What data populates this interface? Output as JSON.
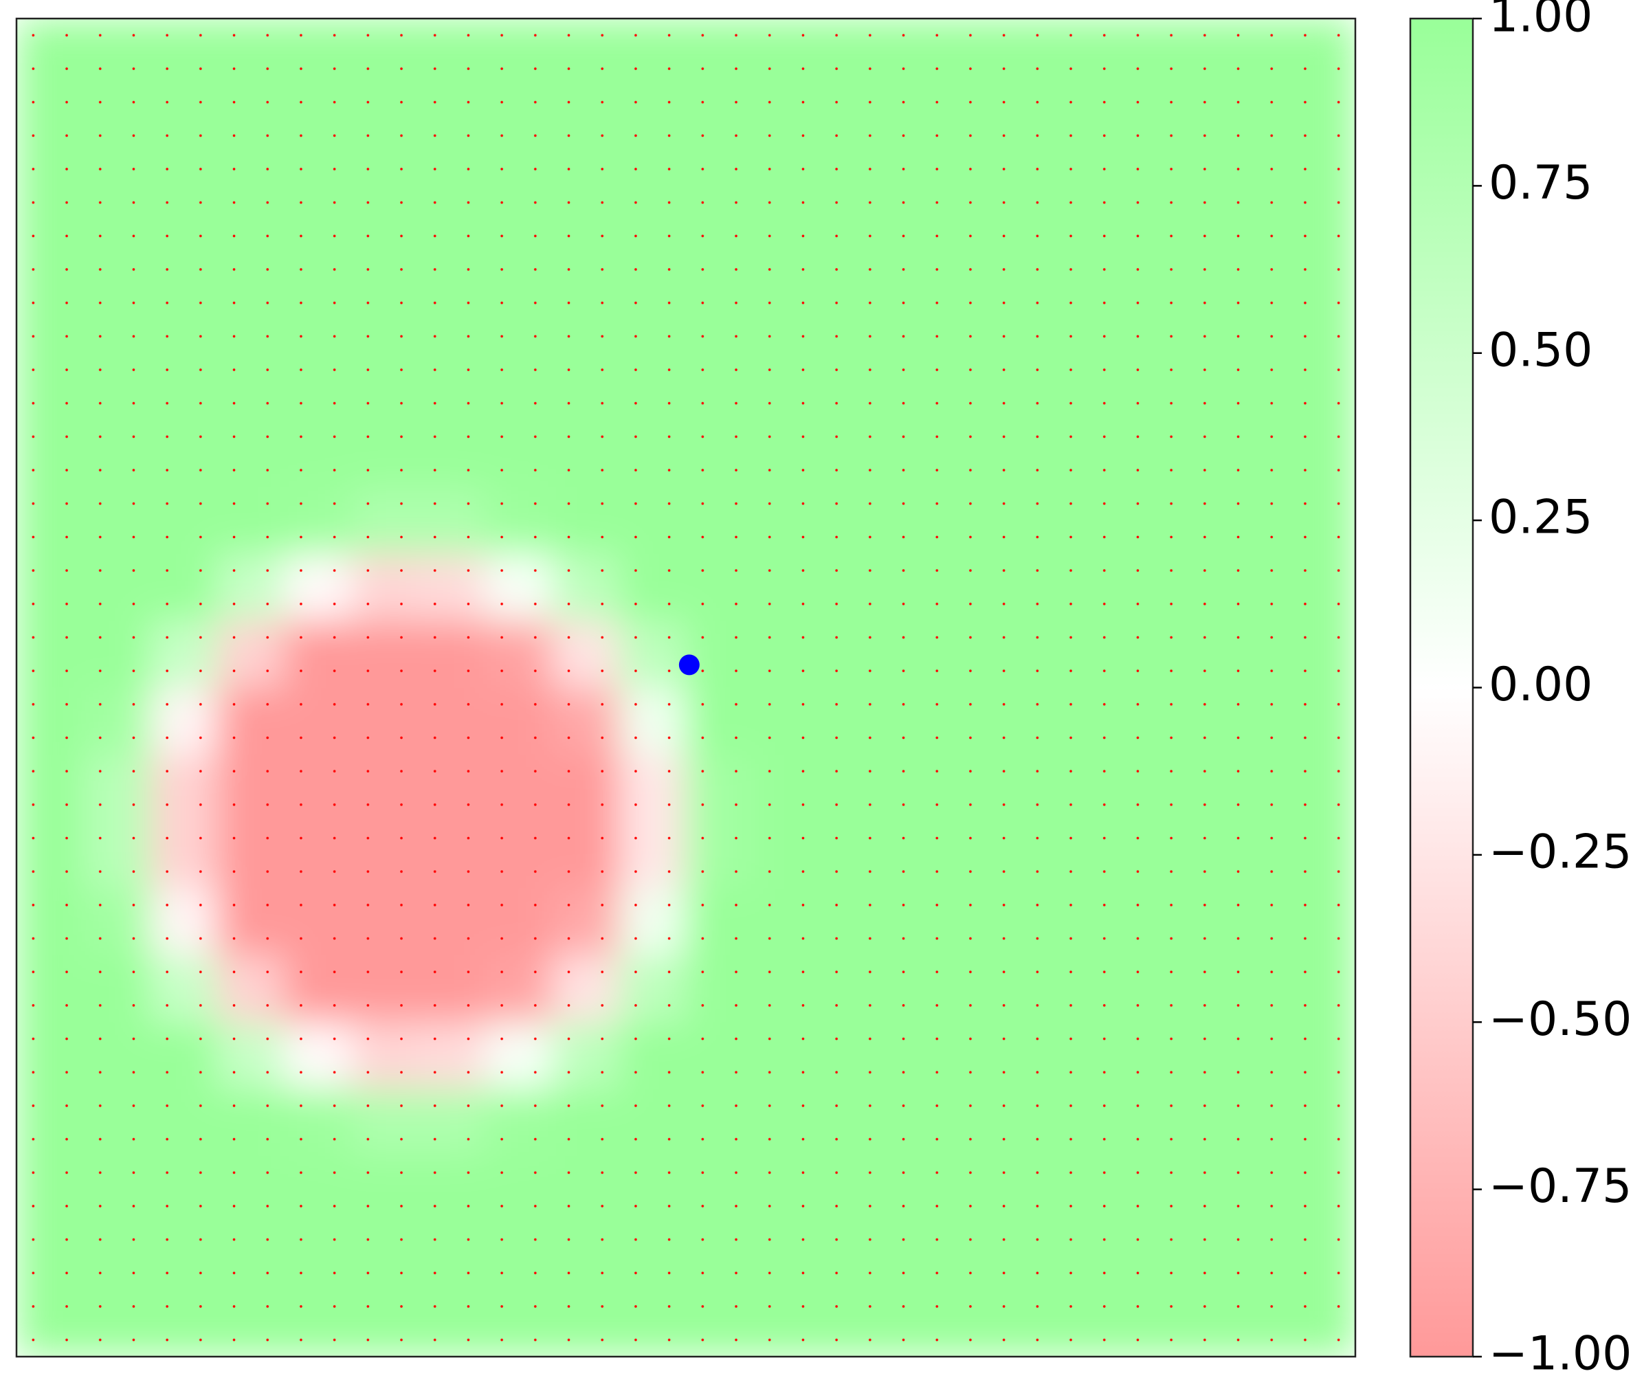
{
  "chart_data": {
    "type": "heatmap",
    "xlim": [
      0,
      20
    ],
    "ylim": [
      0,
      20
    ],
    "colormap": [
      "#ff9999",
      "#ffffff",
      "#99ff99"
    ],
    "clim": [
      -1,
      1
    ],
    "cticks": [
      {
        "value": -1,
        "label": "−1.00"
      },
      {
        "value": -0.75,
        "label": "−0.75"
      },
      {
        "value": -0.5,
        "label": "−0.50"
      },
      {
        "value": -0.25,
        "label": "−0.25"
      },
      {
        "value": 0,
        "label": "0.00"
      },
      {
        "value": 0.25,
        "label": "0.25"
      },
      {
        "value": 0.5,
        "label": "0.50"
      },
      {
        "value": 0.75,
        "label": "0.75"
      },
      {
        "value": 1,
        "label": "1.00"
      }
    ],
    "z": [
      [
        1,
        1,
        1,
        1,
        1,
        1,
        1,
        1,
        1,
        1,
        1,
        1,
        1,
        1,
        1,
        1,
        1,
        1,
        1,
        1
      ],
      [
        1,
        1,
        1,
        1,
        1,
        1,
        1,
        1,
        1,
        1,
        1,
        1,
        1,
        1,
        1,
        1,
        1,
        1,
        1,
        1
      ],
      [
        1,
        1,
        1,
        1,
        1,
        1,
        1,
        1,
        1,
        1,
        1,
        1,
        1,
        1,
        1,
        1,
        1,
        1,
        1,
        1
      ],
      [
        1,
        1,
        1,
        1,
        1,
        1,
        1,
        1,
        1,
        1,
        1,
        1,
        1,
        1,
        1,
        1,
        1,
        1,
        1,
        1
      ],
      [
        1,
        1,
        1,
        1,
        1,
        1,
        1,
        1,
        1,
        1,
        1,
        1,
        1,
        1,
        1,
        1,
        1,
        1,
        1,
        1
      ],
      [
        1,
        1,
        1,
        1,
        1,
        1,
        1,
        1,
        1,
        1,
        1,
        1,
        1,
        1,
        1,
        1,
        1,
        1,
        1,
        1
      ],
      [
        1,
        1,
        1,
        1,
        1,
        1,
        1,
        1,
        1,
        1,
        1,
        1,
        1,
        1,
        1,
        1,
        1,
        1,
        1,
        1
      ],
      [
        1,
        1,
        1,
        1,
        0.95,
        0.8,
        0.8,
        0.95,
        1,
        1,
        1,
        1,
        1,
        1,
        1,
        1,
        1,
        1,
        1,
        1
      ],
      [
        1,
        1,
        1,
        0.55,
        -0.05,
        -0.4,
        -0.35,
        0.07,
        0.65,
        1,
        1,
        1,
        1,
        1,
        1,
        1,
        1,
        1,
        1,
        1
      ],
      [
        1,
        1,
        0.55,
        -0.45,
        -1,
        -1,
        -1,
        -0.9,
        -0.27,
        0.65,
        1,
        1,
        1,
        1,
        1,
        1,
        1,
        1,
        1,
        1
      ],
      [
        1,
        0.9,
        -0.1,
        -1,
        -1,
        -1,
        -1,
        -1,
        -0.85,
        0.15,
        1,
        1,
        1,
        1,
        1,
        1,
        1,
        1,
        1,
        1
      ],
      [
        1,
        0.7,
        -0.45,
        -1,
        -1,
        -1,
        -1,
        -1,
        -1,
        -0.25,
        0.9,
        1,
        1,
        1,
        1,
        1,
        1,
        1,
        1,
        1
      ],
      [
        1,
        0.7,
        -0.45,
        -1,
        -1,
        -1,
        -1,
        -1,
        -1,
        -0.25,
        0.9,
        1,
        1,
        1,
        1,
        1,
        1,
        1,
        1,
        1
      ],
      [
        1,
        0.9,
        -0.1,
        -1,
        -1,
        -1,
        -1,
        -1,
        -0.85,
        0.15,
        1,
        1,
        1,
        1,
        1,
        1,
        1,
        1,
        1,
        1
      ],
      [
        1,
        1,
        0.55,
        -0.45,
        -1,
        -1,
        -1,
        -0.9,
        -0.27,
        0.65,
        1,
        1,
        1,
        1,
        1,
        1,
        1,
        1,
        1,
        1
      ],
      [
        1,
        1,
        1,
        0.55,
        -0.05,
        -0.4,
        -0.35,
        0.07,
        0.65,
        1,
        1,
        1,
        1,
        1,
        1,
        1,
        1,
        1,
        1,
        1
      ],
      [
        1,
        1,
        1,
        1,
        0.95,
        0.8,
        0.8,
        0.95,
        1,
        1,
        1,
        1,
        1,
        1,
        1,
        1,
        1,
        1,
        1,
        1
      ],
      [
        1,
        1,
        1,
        1,
        1,
        1,
        1,
        1,
        1,
        1,
        1,
        1,
        1,
        1,
        1,
        1,
        1,
        1,
        1,
        1
      ],
      [
        1,
        1,
        1,
        1,
        1,
        1,
        1,
        1,
        1,
        1,
        1,
        1,
        1,
        1,
        1,
        1,
        1,
        1,
        1,
        1
      ],
      [
        1,
        1,
        1,
        1,
        1,
        1,
        1,
        1,
        1,
        1,
        1,
        1,
        1,
        1,
        1,
        1,
        1,
        1,
        1,
        1
      ]
    ],
    "point": {
      "x": 10.05,
      "y": 10.34,
      "color": "#0000ff"
    }
  }
}
